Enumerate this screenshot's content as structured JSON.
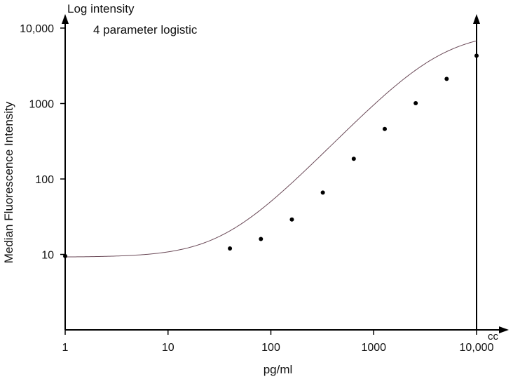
{
  "chart_data": {
    "type": "scatter",
    "title": "4 parameter logistic",
    "y_axis_caption": "Log intensity",
    "x_axis_caption": "cc",
    "xlabel": "pg/ml",
    "ylabel": "Median Fluorescence Intensity",
    "x_scale": "log",
    "y_scale": "log",
    "xlim": [
      1,
      10000
    ],
    "ylim": [
      1,
      10000
    ],
    "x_ticks": [
      {
        "value": 1,
        "label": "1"
      },
      {
        "value": 10,
        "label": "10"
      },
      {
        "value": 100,
        "label": "100"
      },
      {
        "value": 1000,
        "label": "1000"
      },
      {
        "value": 10000,
        "label": "10,000"
      }
    ],
    "y_ticks": [
      {
        "value": 10,
        "label": "10"
      },
      {
        "value": 100,
        "label": "100"
      },
      {
        "value": 1000,
        "label": "1000"
      },
      {
        "value": 10000,
        "label": "10,000"
      }
    ],
    "grid": false,
    "points": [
      {
        "x": 1,
        "y": 9.5
      },
      {
        "x": 40,
        "y": 12
      },
      {
        "x": 80,
        "y": 16
      },
      {
        "x": 160,
        "y": 29
      },
      {
        "x": 320,
        "y": 66
      },
      {
        "x": 640,
        "y": 185
      },
      {
        "x": 1280,
        "y": 460
      },
      {
        "x": 2560,
        "y": 1010
      },
      {
        "x": 5120,
        "y": 2120
      },
      {
        "x": 10000,
        "y": 4300
      }
    ],
    "fit": {
      "model": "4 parameter logistic",
      "bottom": 9.2,
      "top": 9000,
      "ec50": 4550,
      "hill": 1.41
    }
  }
}
